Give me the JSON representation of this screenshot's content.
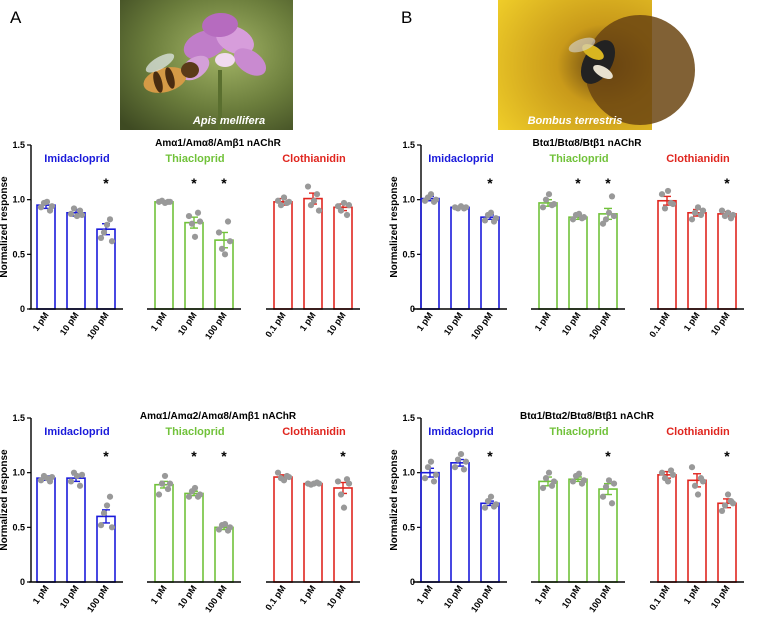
{
  "panels": [
    {
      "letter": "A",
      "photo": {
        "caption": "Apis mellifera",
        "subject": "honeybee-on-purple-flower",
        "colors": [
          "#6b7d3c",
          "#c07dc9",
          "#d59a46"
        ]
      },
      "charts": [
        {
          "title": "Amα1/Amα8/Amβ1 nAChR"
        },
        {
          "title": "Amα1/Amα2/Amα8/Amβ1 nAChR"
        }
      ]
    },
    {
      "letter": "B",
      "photo": {
        "caption": "Bombus terrestris",
        "subject": "bumblebee-on-sunflower",
        "colors": [
          "#e7c51c",
          "#8a5a12",
          "#222222"
        ]
      },
      "charts": [
        {
          "title": "Btα1/Btα8/Btβ1 nAChR"
        },
        {
          "title": "Btα1/Btα2/Btα8/Btβ1 nAChR"
        }
      ]
    }
  ],
  "colors": {
    "Imidacloprid": "#1a1adb",
    "Thiacloprid": "#71c23a",
    "Clothianidin": "#e0261f",
    "dots": "#999999"
  },
  "chart_data": [
    {
      "type": "bar",
      "title": "Amα1/Amα8/Amβ1 nAChR",
      "ylabel": "Normalized response",
      "ylim": [
        0,
        1.5
      ],
      "yticks": [
        "0",
        "0.5",
        "1.0",
        "1.5"
      ],
      "groups": [
        {
          "name": "Imidacloprid",
          "categories": [
            "1 pM",
            "10 pM",
            "100 pM"
          ],
          "values": [
            0.95,
            0.88,
            0.73
          ],
          "sem": [
            0.03,
            0.03,
            0.05
          ],
          "significant": [
            false,
            false,
            true
          ],
          "points": [
            [
              0.93,
              0.97,
              0.98,
              0.9,
              0.94
            ],
            [
              0.87,
              0.92,
              0.85,
              0.9,
              0.86
            ],
            [
              0.65,
              0.7,
              0.77,
              0.82,
              0.62
            ]
          ]
        },
        {
          "name": "Thiacloprid",
          "categories": [
            "1 pM",
            "10 pM",
            "100 pM"
          ],
          "values": [
            0.98,
            0.79,
            0.63
          ],
          "sem": [
            0.01,
            0.05,
            0.07
          ],
          "significant": [
            false,
            true,
            true
          ],
          "points": [
            [
              0.98,
              0.99,
              0.97,
              0.98,
              0.98
            ],
            [
              0.85,
              0.78,
              0.66,
              0.88,
              0.8
            ],
            [
              0.7,
              0.55,
              0.5,
              0.8,
              0.62
            ]
          ]
        },
        {
          "name": "Clothianidin",
          "categories": [
            "0.1 pM",
            "1 pM",
            "10 pM"
          ],
          "values": [
            0.98,
            1.01,
            0.93
          ],
          "sem": [
            0.03,
            0.05,
            0.03
          ],
          "significant": [
            false,
            false,
            false
          ],
          "points": [
            [
              0.99,
              0.95,
              1.02,
              0.97,
              0.98
            ],
            [
              1.12,
              0.95,
              0.99,
              1.05,
              0.9
            ],
            [
              0.94,
              0.9,
              0.97,
              0.86,
              0.95
            ]
          ]
        }
      ]
    },
    {
      "type": "bar",
      "title": "Btα1/Btα8/Btβ1 nAChR",
      "ylabel": "Normalized response",
      "ylim": [
        0,
        1.5
      ],
      "yticks": [
        "0",
        "0.5",
        "1.0",
        "1.5"
      ],
      "groups": [
        {
          "name": "Imidacloprid",
          "categories": [
            "1 pM",
            "10 pM",
            "100 pM"
          ],
          "values": [
            1.01,
            0.93,
            0.84
          ],
          "sem": [
            0.02,
            0.01,
            0.02
          ],
          "significant": [
            false,
            false,
            true
          ],
          "points": [
            [
              0.99,
              1.02,
              1.05,
              0.98,
              1.0
            ],
            [
              0.93,
              0.92,
              0.94,
              0.92,
              0.93
            ],
            [
              0.81,
              0.86,
              0.88,
              0.8,
              0.83
            ]
          ]
        },
        {
          "name": "Thiacloprid",
          "categories": [
            "1 pM",
            "10 pM",
            "100 pM"
          ],
          "values": [
            0.97,
            0.84,
            0.87
          ],
          "sem": [
            0.03,
            0.02,
            0.05
          ],
          "significant": [
            false,
            true,
            true
          ],
          "points": [
            [
              0.93,
              1.0,
              1.05,
              0.95,
              0.96
            ],
            [
              0.82,
              0.86,
              0.87,
              0.83,
              0.84
            ],
            [
              0.78,
              0.82,
              0.88,
              1.03,
              0.85
            ]
          ]
        },
        {
          "name": "Clothianidin",
          "categories": [
            "0.1 pM",
            "1 pM",
            "10 pM"
          ],
          "values": [
            0.99,
            0.88,
            0.87
          ],
          "sem": [
            0.04,
            0.03,
            0.02
          ],
          "significant": [
            false,
            false,
            true
          ],
          "points": [
            [
              1.05,
              0.92,
              1.08,
              0.97,
              0.96
            ],
            [
              0.82,
              0.88,
              0.93,
              0.86,
              0.9
            ],
            [
              0.9,
              0.85,
              0.88,
              0.83,
              0.86
            ]
          ]
        }
      ]
    },
    {
      "type": "bar",
      "title": "Amα1/Amα2/Amα8/Amβ1 nAChR",
      "ylabel": "Normalized response",
      "ylim": [
        0,
        1.5
      ],
      "yticks": [
        "0",
        "0.5",
        "1.0",
        "1.5"
      ],
      "groups": [
        {
          "name": "Imidacloprid",
          "categories": [
            "1 pM",
            "10 pM",
            "100 pM"
          ],
          "values": [
            0.95,
            0.95,
            0.6
          ],
          "sem": [
            0.02,
            0.03,
            0.06
          ],
          "significant": [
            false,
            false,
            true
          ],
          "points": [
            [
              0.93,
              0.97,
              0.95,
              0.92,
              0.96
            ],
            [
              0.92,
              1.0,
              0.97,
              0.88,
              0.98
            ],
            [
              0.52,
              0.63,
              0.7,
              0.78,
              0.5
            ]
          ]
        },
        {
          "name": "Thiacloprid",
          "categories": [
            "1 pM",
            "10 pM",
            "100 pM"
          ],
          "values": [
            0.89,
            0.81,
            0.5
          ],
          "sem": [
            0.03,
            0.02,
            0.02
          ],
          "significant": [
            false,
            true,
            true
          ],
          "points": [
            [
              0.8,
              0.9,
              0.97,
              0.85,
              0.9
            ],
            [
              0.78,
              0.83,
              0.86,
              0.78,
              0.8
            ],
            [
              0.48,
              0.52,
              0.53,
              0.47,
              0.5
            ]
          ]
        },
        {
          "name": "Clothianidin",
          "categories": [
            "0.1 pM",
            "1 pM",
            "10 pM"
          ],
          "values": [
            0.96,
            0.9,
            0.86
          ],
          "sem": [
            0.02,
            0.01,
            0.05
          ],
          "significant": [
            false,
            false,
            true
          ],
          "points": [
            [
              1.0,
              0.95,
              0.93,
              0.97,
              0.96
            ],
            [
              0.9,
              0.89,
              0.9,
              0.91,
              0.9
            ],
            [
              0.92,
              0.8,
              0.68,
              0.94,
              0.9
            ]
          ]
        }
      ]
    },
    {
      "type": "bar",
      "title": "Btα1/Btα2/Btα8/Btβ1 nAChR",
      "ylabel": "Normalized response",
      "ylim": [
        0,
        1.5
      ],
      "yticks": [
        "0",
        "0.5",
        "1.0",
        "1.5"
      ],
      "groups": [
        {
          "name": "Imidacloprid",
          "categories": [
            "1 pM",
            "10 pM",
            "100 pM"
          ],
          "values": [
            1.0,
            1.09,
            0.72
          ],
          "sem": [
            0.04,
            0.03,
            0.02
          ],
          "significant": [
            false,
            false,
            true
          ],
          "points": [
            [
              0.95,
              1.05,
              1.1,
              0.92,
              0.98
            ],
            [
              1.05,
              1.12,
              1.17,
              1.03,
              1.1
            ],
            [
              0.68,
              0.74,
              0.78,
              0.69,
              0.71
            ]
          ]
        },
        {
          "name": "Thiacloprid",
          "categories": [
            "1 pM",
            "10 pM",
            "100 pM"
          ],
          "values": [
            0.92,
            0.94,
            0.85
          ],
          "sem": [
            0.04,
            0.02,
            0.05
          ],
          "significant": [
            false,
            false,
            true
          ],
          "points": [
            [
              0.86,
              0.95,
              1.0,
              0.88,
              0.92
            ],
            [
              0.92,
              0.97,
              0.99,
              0.9,
              0.93
            ],
            [
              0.78,
              0.87,
              0.93,
              0.72,
              0.9
            ]
          ]
        },
        {
          "name": "Clothianidin",
          "categories": [
            "0.1 pM",
            "1 pM",
            "10 pM"
          ],
          "values": [
            0.98,
            0.93,
            0.72
          ],
          "sem": [
            0.03,
            0.06,
            0.04
          ],
          "significant": [
            false,
            false,
            true
          ],
          "points": [
            [
              1.0,
              0.95,
              0.92,
              1.02,
              0.98
            ],
            [
              1.05,
              0.88,
              0.8,
              0.95,
              0.92
            ],
            [
              0.65,
              0.7,
              0.8,
              0.74,
              0.72
            ]
          ]
        }
      ]
    }
  ]
}
